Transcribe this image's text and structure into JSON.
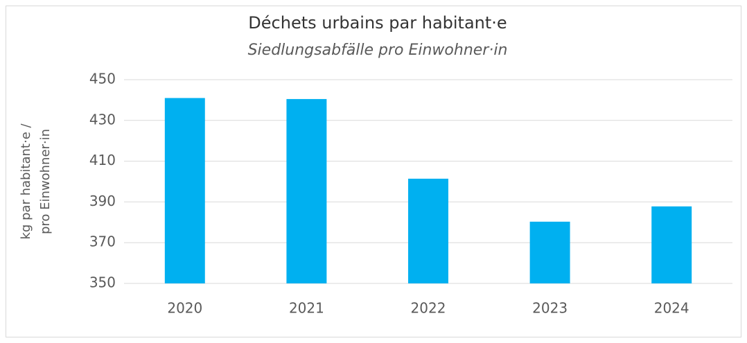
{
  "chart_data": {
    "type": "bar",
    "title": "Déchets urbains par habitant·e",
    "subtitle": "Siedlungsabfälle pro Einwohner·in",
    "y_label": [
      "kg par habitant·e /",
      "pro Einwohner·in"
    ],
    "categories": [
      "2020",
      "2021",
      "2022",
      "2023",
      "2024"
    ],
    "values": [
      441,
      440.5,
      401.4,
      380.3,
      387.8
    ],
    "color": "#00b0f0",
    "ylim": [
      350,
      450
    ],
    "yticks": [
      350,
      370,
      390,
      410,
      430,
      450
    ],
    "grid": true
  }
}
